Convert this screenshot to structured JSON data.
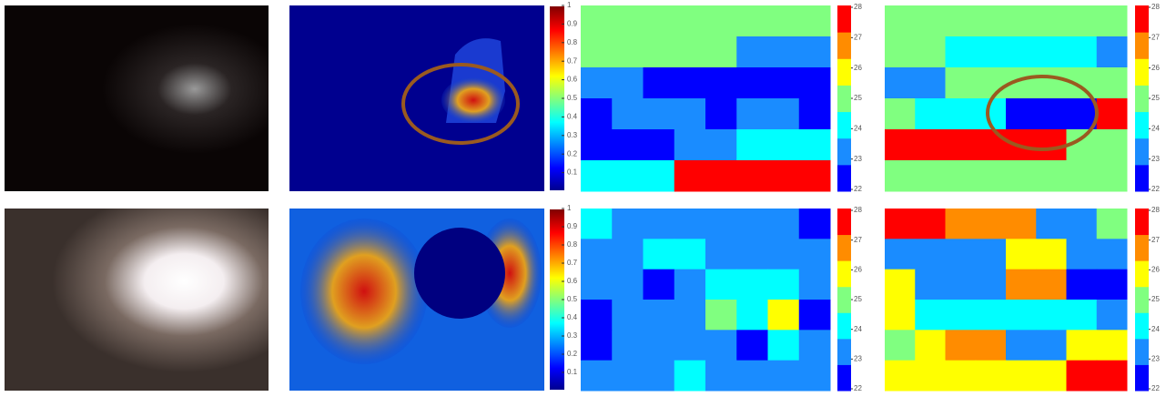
{
  "rows": [
    {
      "attention_colorbar": {
        "lim": [
          0,
          1
        ],
        "ticks": [
          0.1,
          0.2,
          0.3,
          0.4,
          0.5,
          0.6,
          0.7,
          0.8,
          0.9,
          1
        ]
      },
      "grids": [
        {
          "clim": [
            22,
            28
          ],
          "colorbar_ticks": [
            22,
            23,
            24,
            25,
            26,
            27,
            28
          ],
          "cells": [
            [
              25,
              25,
              25,
              25,
              25,
              25,
              25,
              25
            ],
            [
              25,
              25,
              25,
              25,
              25,
              23,
              23,
              23
            ],
            [
              23,
              23,
              22,
              22,
              22,
              22,
              22,
              22
            ],
            [
              22,
              23,
              23,
              23,
              22,
              23,
              23,
              22
            ],
            [
              22,
              22,
              22,
              23,
              23,
              24,
              24,
              24
            ],
            [
              24,
              24,
              24,
              28,
              28,
              28,
              28,
              28
            ]
          ]
        },
        {
          "clim": [
            22,
            28
          ],
          "colorbar_ticks": [
            22,
            23,
            24,
            25,
            26,
            27,
            28
          ],
          "cells": [
            [
              25,
              25,
              25,
              25,
              25,
              25,
              25,
              25
            ],
            [
              25,
              25,
              24,
              24,
              24,
              24,
              24,
              23
            ],
            [
              23,
              23,
              25,
              25,
              25,
              25,
              25,
              25
            ],
            [
              25,
              24,
              24,
              24,
              22,
              22,
              22,
              28
            ],
            [
              28,
              28,
              28,
              28,
              28,
              28,
              25,
              25
            ],
            [
              25,
              25,
              25,
              25,
              25,
              25,
              25,
              25
            ]
          ]
        }
      ]
    },
    {
      "attention_colorbar": {
        "lim": [
          0,
          1
        ],
        "ticks": [
          0.1,
          0.2,
          0.3,
          0.4,
          0.5,
          0.6,
          0.7,
          0.8,
          0.9,
          1
        ]
      },
      "grids": [
        {
          "clim": [
            22,
            28
          ],
          "colorbar_ticks": [
            22,
            23,
            24,
            25,
            26,
            27,
            28
          ],
          "cells": [
            [
              24,
              23,
              23,
              23,
              23,
              23,
              23,
              22
            ],
            [
              23,
              23,
              24,
              24,
              23,
              23,
              23,
              23
            ],
            [
              23,
              23,
              22,
              23,
              24,
              24,
              24,
              23
            ],
            [
              22,
              23,
              23,
              23,
              25,
              24,
              26,
              22
            ],
            [
              22,
              23,
              23,
              23,
              23,
              22,
              24,
              23
            ],
            [
              23,
              23,
              23,
              24,
              23,
              23,
              23,
              23
            ]
          ]
        },
        {
          "clim": [
            22,
            28
          ],
          "colorbar_ticks": [
            22,
            23,
            24,
            25,
            26,
            27,
            28
          ],
          "cells": [
            [
              28,
              28,
              27,
              27,
              27,
              23,
              23,
              25
            ],
            [
              23,
              23,
              23,
              23,
              26,
              26,
              23,
              23
            ],
            [
              26,
              23,
              23,
              23,
              27,
              27,
              22,
              22
            ],
            [
              26,
              24,
              24,
              24,
              24,
              24,
              24,
              23
            ],
            [
              25,
              26,
              27,
              27,
              23,
              23,
              26,
              26
            ],
            [
              26,
              26,
              26,
              26,
              26,
              26,
              28,
              28
            ]
          ]
        }
      ]
    }
  ],
  "palette": [
    "#0000ff",
    "#1a8cff",
    "#00ffff",
    "#80ff80",
    "#ffff00",
    "#ff8c00",
    "#ff0000"
  ]
}
